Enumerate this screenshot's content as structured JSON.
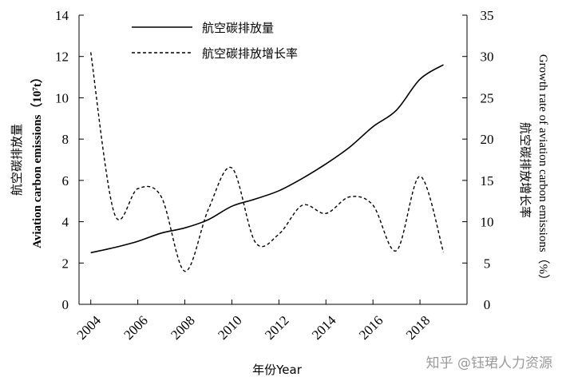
{
  "chart_data": {
    "type": "line",
    "x_ticks": [
      "2004",
      "2006",
      "2008",
      "2010",
      "2012",
      "2014",
      "2016",
      "2018"
    ],
    "y_left": {
      "ticks": [
        "0",
        "2",
        "4",
        "6",
        "8",
        "10",
        "12",
        "14"
      ],
      "range": [
        0,
        14
      ]
    },
    "y_right": {
      "ticks": [
        "0",
        "5",
        "10",
        "15",
        "20",
        "25",
        "30",
        "35"
      ],
      "range": [
        0,
        35
      ]
    },
    "xlabel": "年份Year",
    "ylabel_left": [
      "航空碳排放量",
      "Aviation carbon emissions（10⁷t）"
    ],
    "ylabel_right": [
      "航空碳排放增长率",
      "Growth rate of aviation carbon emissions（%）"
    ],
    "series": [
      {
        "name": "航空碳排放量",
        "axis": "left",
        "style": "solid",
        "x": [
          2004,
          2005,
          2006,
          2007,
          2008,
          2009,
          2010,
          2011,
          2012,
          2013,
          2014,
          2015,
          2016,
          2017,
          2018,
          2019
        ],
        "values": [
          2.5,
          2.75,
          3.05,
          3.45,
          3.7,
          4.1,
          4.75,
          5.1,
          5.5,
          6.1,
          6.8,
          7.6,
          8.6,
          9.4,
          10.9,
          11.6
        ]
      },
      {
        "name": "航空碳排放增长率",
        "axis": "right",
        "style": "dashed",
        "x": [
          2004,
          2005,
          2006,
          2007,
          2008,
          2009,
          2010,
          2011,
          2012,
          2013,
          2014,
          2015,
          2016,
          2017,
          2018,
          2019
        ],
        "values": [
          30.5,
          11.0,
          14.0,
          13.0,
          4.0,
          11.5,
          16.5,
          7.5,
          8.5,
          12.0,
          11.0,
          13.0,
          12.0,
          6.5,
          15.5,
          6.3
        ]
      }
    ],
    "legend": "top-center"
  },
  "watermark": "知乎 @钰珺人力资源"
}
